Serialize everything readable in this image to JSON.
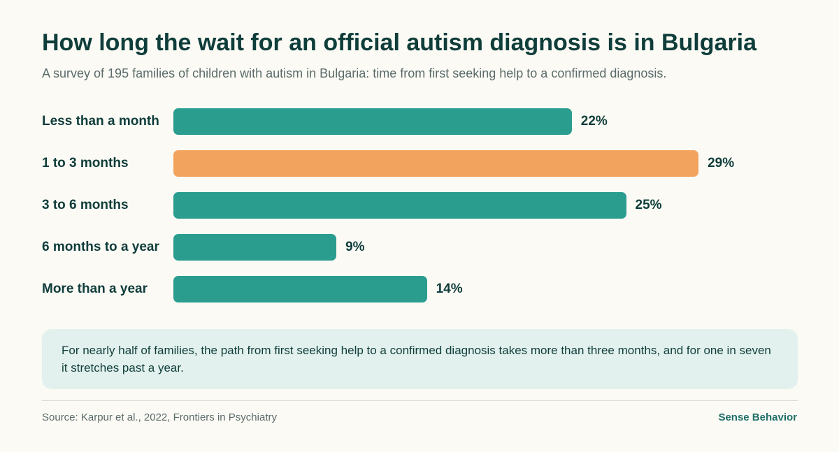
{
  "header": {
    "title": "How long the wait for an official autism diagnosis is in Bulgaria",
    "subtitle": "A survey of 195 families of children with autism in Bulgaria: time from first seeking help to a confirmed diagnosis."
  },
  "chart_data": {
    "type": "bar",
    "orientation": "horizontal",
    "categories": [
      "Less than a month",
      "1 to 3 months",
      "3 to 6 months",
      "6 months to a year",
      "More than a year"
    ],
    "values": [
      22,
      29,
      25,
      9,
      14
    ],
    "value_labels": [
      "22%",
      "29%",
      "25%",
      "9%",
      "14%"
    ],
    "highlight_index": 1,
    "colors": {
      "default": "#2a9d8f",
      "highlight": "#f2a35e"
    },
    "xlim": [
      0,
      34
    ],
    "grid": false
  },
  "note": {
    "text": "For nearly half of families, the path from first seeking help to a confirmed diagnosis takes more than three months, and for one in seven it stretches past a year."
  },
  "footer": {
    "source": "Source: Karpur et al., 2022, Frontiers in Psychiatry",
    "brand": "Sense Behavior"
  }
}
